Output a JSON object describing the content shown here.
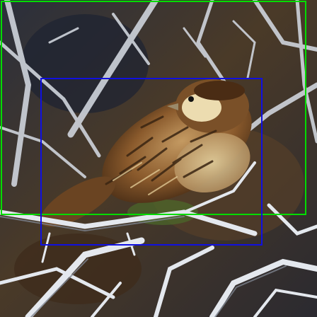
{
  "image": {
    "subject": "sparrow-perched-in-bare-branches",
    "palette": {
      "sky_dark": "#20283a",
      "branch_light": "#dfe3ea",
      "branch_shadow": "#8a8f9a",
      "foliage_brown": "#6b4a26",
      "bird_brown": "#8a5a2c",
      "bird_cream": "#e9d8a6",
      "bird_streak": "#3a2512",
      "green_hint": "#4b6a2a"
    }
  },
  "overlays": [
    {
      "label_name": "green-box",
      "color": "#00dd00"
    },
    {
      "label_name": "blue-box",
      "color": "#1010e0"
    }
  ]
}
